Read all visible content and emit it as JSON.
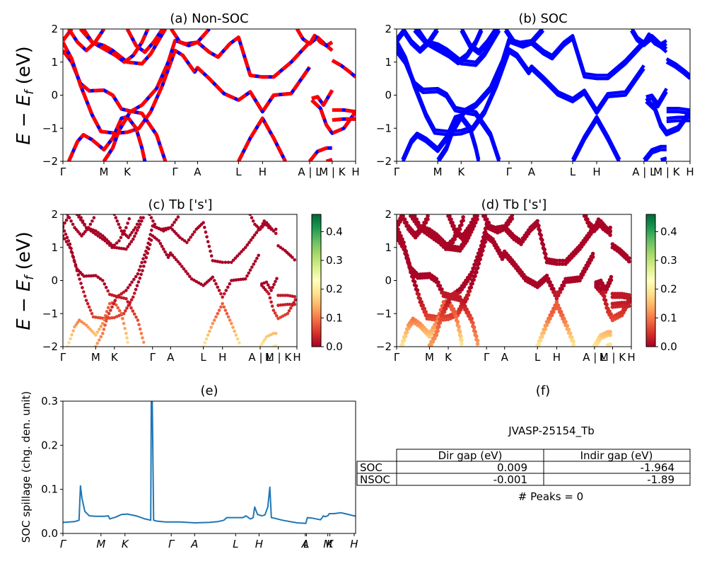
{
  "chart_data": [
    {
      "id": "a",
      "type": "line",
      "title": "(a) Non-SOC",
      "ylabel": "E - E_f (eV)",
      "ylim": [
        -2,
        2
      ],
      "yticks": [
        "-2",
        "-1",
        "0",
        "1",
        "2"
      ],
      "xticks": [
        {
          "label": "Γ",
          "pos": 0.0
        },
        {
          "label": "M",
          "pos": 0.14
        },
        {
          "label": "K",
          "pos": 0.22
        },
        {
          "label": "Γ",
          "pos": 0.383
        },
        {
          "label": "A",
          "pos": 0.46
        },
        {
          "label": "L",
          "pos": 0.6
        },
        {
          "label": "H",
          "pos": 0.682
        },
        {
          "label": "A | L",
          "pos": 0.843
        },
        {
          "label": "M | K",
          "pos": 0.92
        },
        {
          "label": "H",
          "pos": 1.0
        }
      ],
      "series_colors": {
        "spin_up": "#0000ff",
        "spin_down": "#ff0000"
      },
      "bands": [
        [
          [
            0,
            1.35
          ],
          [
            0.03,
            1.0
          ],
          [
            0.06,
            0.35
          ],
          [
            0.09,
            0.13
          ],
          [
            0.14,
            0.15
          ],
          [
            0.17,
            0.0
          ],
          [
            0.2,
            -0.42
          ],
          [
            0.24,
            -0.5
          ],
          [
            0.27,
            -0.55
          ],
          [
            0.32,
            -1.2
          ],
          [
            0.35,
            -2.0
          ]
        ],
        [
          [
            0,
            1.6
          ],
          [
            0.03,
            1.1
          ],
          [
            0.06,
            0.3
          ],
          [
            0.1,
            -0.6
          ],
          [
            0.13,
            -1.1
          ],
          [
            0.18,
            -1.15
          ],
          [
            0.22,
            -1.12
          ],
          [
            0.26,
            -1.0
          ],
          [
            0.3,
            -0.5
          ],
          [
            0.34,
            0.3
          ],
          [
            0.383,
            1.35
          ],
          [
            0.41,
            1.2
          ],
          [
            0.45,
            0.7
          ],
          [
            0.46,
            0.83
          ],
          [
            0.5,
            0.5
          ],
          [
            0.55,
            0.05
          ],
          [
            0.6,
            -0.15
          ],
          [
            0.64,
            0.1
          ],
          [
            0.682,
            -0.5
          ],
          [
            0.72,
            0.0
          ],
          [
            0.78,
            0.05
          ],
          [
            0.843,
            0.85
          ]
        ],
        [
          [
            0.02,
            -2.0
          ],
          [
            0.05,
            -1.4
          ],
          [
            0.07,
            -1.2
          ],
          [
            0.1,
            -1.35
          ],
          [
            0.14,
            -1.65
          ],
          [
            0.17,
            -1.3
          ],
          [
            0.2,
            -0.7
          ],
          [
            0.22,
            -0.65
          ],
          [
            0.25,
            -1.0
          ],
          [
            0.27,
            -1.6
          ],
          [
            0.28,
            -2.0
          ]
        ],
        [
          [
            0.14,
            -2.0
          ],
          [
            0.17,
            -1.6
          ],
          [
            0.19,
            -1.1
          ],
          [
            0.23,
            -0.5
          ],
          [
            0.27,
            -0.3
          ],
          [
            0.32,
            0.2
          ],
          [
            0.36,
            1.0
          ],
          [
            0.383,
            1.65
          ],
          [
            0.42,
            1.55
          ],
          [
            0.46,
            1.6
          ],
          [
            0.5,
            1.3
          ],
          [
            0.53,
            1.15
          ],
          [
            0.57,
            1.55
          ],
          [
            0.6,
            1.75
          ],
          [
            0.64,
            0.6
          ],
          [
            0.682,
            0.55
          ],
          [
            0.72,
            0.55
          ],
          [
            0.78,
            1.0
          ],
          [
            0.843,
            1.6
          ]
        ],
        [
          [
            0,
            1.65
          ],
          [
            0.03,
            2.0
          ]
        ],
        [
          [
            0.02,
            2.0
          ],
          [
            0.05,
            1.6
          ],
          [
            0.08,
            1.35
          ],
          [
            0.11,
            1.6
          ],
          [
            0.14,
            2.0
          ]
        ],
        [
          [
            0.07,
            2.0
          ],
          [
            0.1,
            1.6
          ],
          [
            0.14,
            1.5
          ],
          [
            0.17,
            1.35
          ],
          [
            0.22,
            1.0
          ],
          [
            0.27,
            0.95
          ],
          [
            0.3,
            1.25
          ],
          [
            0.33,
            1.7
          ],
          [
            0.35,
            2.0
          ]
        ],
        [
          [
            0.06,
            2.0
          ],
          [
            0.1,
            1.6
          ],
          [
            0.14,
            1.4
          ],
          [
            0.18,
            1.2
          ],
          [
            0.21,
            1.0
          ],
          [
            0.24,
            1.2
          ],
          [
            0.27,
            1.6
          ],
          [
            0.29,
            2.0
          ]
        ],
        [
          [
            0.22,
            2.0
          ],
          [
            0.25,
            1.5
          ],
          [
            0.28,
            1.3
          ],
          [
            0.31,
            1.6
          ],
          [
            0.34,
            2.0
          ]
        ],
        [
          [
            0.37,
            2.0
          ],
          [
            0.4,
            1.6
          ],
          [
            0.43,
            1.5
          ],
          [
            0.46,
            1.6
          ],
          [
            0.5,
            2.0
          ]
        ],
        [
          [
            0.6,
            -2.0
          ],
          [
            0.64,
            -1.3
          ],
          [
            0.682,
            -0.7
          ],
          [
            0.72,
            -1.3
          ],
          [
            0.76,
            -2.0
          ]
        ],
        [
          [
            0.8,
            2.0
          ],
          [
            0.82,
            1.7
          ],
          [
            0.843,
            1.55
          ],
          [
            0.87,
            1.75
          ],
          [
            0.9,
            1.5
          ],
          [
            0.92,
            1.35
          ]
        ],
        [
          [
            0.843,
            1.55
          ],
          [
            0.86,
            1.8
          ],
          [
            0.88,
            1.6
          ],
          [
            0.9,
            1.5
          ],
          [
            0.92,
            1.6
          ]
        ],
        [
          [
            0.92,
            1.05
          ],
          [
            0.95,
            0.9
          ],
          [
            0.98,
            0.7
          ],
          [
            1.0,
            0.55
          ]
        ],
        [
          [
            0.85,
            -0.1
          ],
          [
            0.87,
            -0.05
          ],
          [
            0.89,
            -0.3
          ],
          [
            0.92,
            0.15
          ]
        ],
        [
          [
            0.85,
            -0.15
          ],
          [
            0.88,
            -0.4
          ],
          [
            0.9,
            -0.9
          ],
          [
            0.92,
            -1.15
          ],
          [
            0.96,
            -1.0
          ],
          [
            1.0,
            -0.5
          ]
        ],
        [
          [
            0.92,
            -0.45
          ],
          [
            0.96,
            -0.45
          ],
          [
            1.0,
            -0.5
          ]
        ],
        [
          [
            0.92,
            -0.75
          ],
          [
            0.96,
            -0.72
          ],
          [
            1.0,
            -0.72
          ]
        ],
        [
          [
            0.843,
            -2.0
          ],
          [
            0.87,
            -1.7
          ],
          [
            0.9,
            -1.6
          ],
          [
            0.92,
            -1.6
          ]
        ],
        [
          [
            0.9,
            -2.0
          ],
          [
            0.92,
            -1.95
          ]
        ]
      ]
    },
    {
      "id": "b",
      "type": "line",
      "title": "(b) SOC",
      "ylim": [
        -2,
        2
      ],
      "yticks": [
        "-2",
        "-1",
        "0",
        "1",
        "2"
      ],
      "xticks": [
        {
          "label": "Γ",
          "pos": 0.0
        },
        {
          "label": "M",
          "pos": 0.14
        },
        {
          "label": "K",
          "pos": 0.22
        },
        {
          "label": "Γ",
          "pos": 0.383
        },
        {
          "label": "A",
          "pos": 0.46
        },
        {
          "label": "L",
          "pos": 0.6
        },
        {
          "label": "H",
          "pos": 0.682
        },
        {
          "label": "A | L",
          "pos": 0.843
        },
        {
          "label": "M | K",
          "pos": 0.92
        },
        {
          "label": "H",
          "pos": 1.0
        }
      ],
      "color": "#0000ff"
    },
    {
      "id": "c",
      "type": "scatter",
      "title": "(c)  Tb ['s']",
      "ylabel": "E - E_f (eV)",
      "ylim": [
        -2,
        2
      ],
      "yticks": [
        "-2",
        "-1",
        "0",
        "1",
        "2"
      ],
      "xticks": [
        {
          "label": "Γ",
          "pos": 0.0
        },
        {
          "label": "M",
          "pos": 0.14
        },
        {
          "label": "K",
          "pos": 0.22
        },
        {
          "label": "Γ",
          "pos": 0.383
        },
        {
          "label": "A",
          "pos": 0.46
        },
        {
          "label": "L",
          "pos": 0.6
        },
        {
          "label": "H",
          "pos": 0.682
        },
        {
          "label": "A | L",
          "pos": 0.843
        },
        {
          "label": "M | K",
          "pos": 0.92
        },
        {
          "label": "H",
          "pos": 1.0
        }
      ],
      "colorbar": {
        "cmap": "RdYlGn",
        "range": [
          0,
          0.46
        ],
        "ticks": [
          "0.0",
          "0.1",
          "0.2",
          "0.3",
          "0.4"
        ]
      }
    },
    {
      "id": "d",
      "type": "scatter",
      "title": "(d) Tb ['s']",
      "ylim": [
        -2,
        2
      ],
      "yticks": [
        "-2",
        "-1",
        "0",
        "1",
        "2"
      ],
      "xticks": [
        {
          "label": "Γ",
          "pos": 0.0
        },
        {
          "label": "M",
          "pos": 0.14
        },
        {
          "label": "K",
          "pos": 0.22
        },
        {
          "label": "Γ",
          "pos": 0.383
        },
        {
          "label": "A",
          "pos": 0.46
        },
        {
          "label": "L",
          "pos": 0.6
        },
        {
          "label": "H",
          "pos": 0.682
        },
        {
          "label": "A | L",
          "pos": 0.843
        },
        {
          "label": "M | K",
          "pos": 0.92
        },
        {
          "label": "H",
          "pos": 1.0
        }
      ],
      "colorbar": {
        "cmap": "RdYlGn",
        "range": [
          0,
          0.46
        ],
        "ticks": [
          "0.0",
          "0.1",
          "0.2",
          "0.3",
          "0.4"
        ]
      }
    },
    {
      "id": "e",
      "type": "line",
      "title": "(e)",
      "ylabel": "SOC spillage (chg. den. unit)",
      "ylim": [
        0,
        0.3
      ],
      "yticks": [
        "0.0",
        "0.1",
        "0.2",
        "0.3"
      ],
      "xticks": [
        {
          "label": "Γ",
          "pos": 0.0
        },
        {
          "label": "M",
          "pos": 0.13
        },
        {
          "label": "K",
          "pos": 0.212
        },
        {
          "label": "Γ",
          "pos": 0.37
        },
        {
          "label": "A",
          "pos": 0.45
        },
        {
          "label": "L",
          "pos": 0.59
        },
        {
          "label": "H",
          "pos": 0.67
        },
        {
          "label": "A",
          "pos": 0.828
        },
        {
          "label": "L",
          "pos": 0.832
        },
        {
          "label": "M",
          "pos": 0.905
        },
        {
          "label": "K",
          "pos": 0.912
        },
        {
          "label": "H",
          "pos": 0.995
        }
      ],
      "color": "#1f77b4",
      "x": [
        0.0,
        0.04,
        0.055,
        0.06,
        0.065,
        0.075,
        0.09,
        0.11,
        0.14,
        0.155,
        0.16,
        0.18,
        0.2,
        0.22,
        0.25,
        0.28,
        0.3,
        0.302,
        0.305,
        0.31,
        0.32,
        0.35,
        0.4,
        0.45,
        0.5,
        0.53,
        0.55,
        0.56,
        0.6,
        0.615,
        0.625,
        0.64,
        0.645,
        0.65,
        0.655,
        0.665,
        0.68,
        0.69,
        0.7,
        0.707,
        0.712,
        0.72,
        0.75,
        0.8,
        0.83,
        0.835,
        0.85,
        0.88,
        0.89,
        0.895,
        0.905,
        0.91,
        0.925,
        0.95,
        0.97,
        1.0
      ],
      "y": [
        0.025,
        0.027,
        0.03,
        0.108,
        0.08,
        0.05,
        0.04,
        0.039,
        0.039,
        0.04,
        0.033,
        0.037,
        0.043,
        0.044,
        0.04,
        0.033,
        0.03,
        0.31,
        0.31,
        0.03,
        0.028,
        0.026,
        0.026,
        0.024,
        0.025,
        0.027,
        0.03,
        0.036,
        0.036,
        0.036,
        0.04,
        0.033,
        0.034,
        0.036,
        0.06,
        0.043,
        0.04,
        0.042,
        0.06,
        0.105,
        0.036,
        0.035,
        0.03,
        0.024,
        0.023,
        0.036,
        0.035,
        0.031,
        0.04,
        0.038,
        0.04,
        0.045,
        0.045,
        0.047,
        0.044,
        0.039
      ]
    },
    {
      "id": "f",
      "type": "table",
      "title": "(f)",
      "subtitle": "JVASP-25154_Tb",
      "columns": [
        "",
        "Dir gap (eV)",
        "Indir gap (eV)"
      ],
      "rows": [
        {
          "label": "SOC",
          "dir_gap": "0.009",
          "indir_gap": "-1.964"
        },
        {
          "label": "NSOC",
          "dir_gap": "-0.001",
          "indir_gap": "-1.89"
        }
      ],
      "footer": "# Peaks = 0"
    }
  ]
}
